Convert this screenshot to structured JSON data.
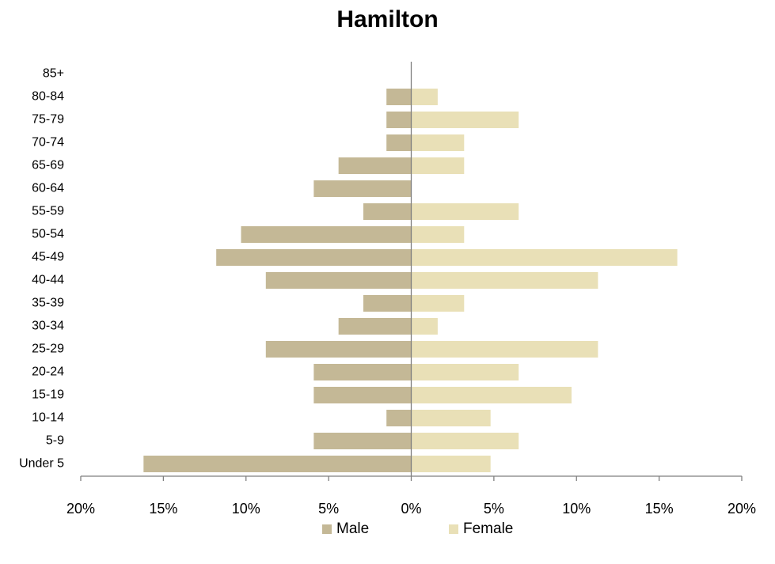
{
  "chart_data": {
    "type": "bar",
    "title": "Hamilton",
    "categories": [
      "Under 5",
      "5-9",
      "10-14",
      "15-19",
      "20-24",
      "25-29",
      "30-34",
      "35-39",
      "40-44",
      "45-49",
      "50-54",
      "55-59",
      "60-64",
      "65-69",
      "70-74",
      "75-79",
      "80-84",
      "85+"
    ],
    "series": [
      {
        "name": "Male",
        "color": "#C4B896",
        "values": [
          16.2,
          5.9,
          1.5,
          5.9,
          5.9,
          8.8,
          4.4,
          2.9,
          8.8,
          11.8,
          10.3,
          2.9,
          5.9,
          4.4,
          1.5,
          1.5,
          1.5,
          0
        ]
      },
      {
        "name": "Female",
        "color": "#E9E0B7",
        "values": [
          4.8,
          6.5,
          4.8,
          9.7,
          6.5,
          11.3,
          1.6,
          3.2,
          11.3,
          16.1,
          3.2,
          6.5,
          0,
          3.2,
          3.2,
          6.5,
          1.6,
          0
        ]
      }
    ],
    "xlim": [
      -20,
      20
    ],
    "xticks": [
      -20,
      -15,
      -10,
      -5,
      0,
      5,
      10,
      15,
      20
    ],
    "xtick_labels": [
      "20%",
      "15%",
      "10%",
      "5%",
      "0%",
      "5%",
      "10%",
      "15%",
      "20%"
    ],
    "legend_position": "bottom",
    "grid": false
  }
}
